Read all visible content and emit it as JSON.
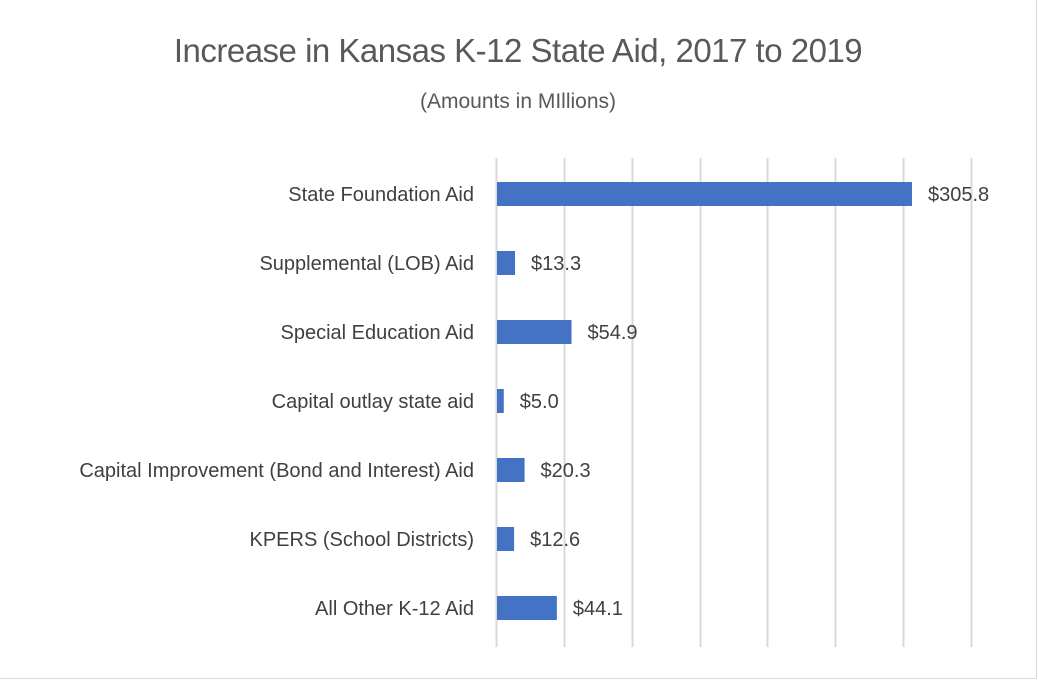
{
  "chart_data": {
    "type": "bar",
    "orientation": "horizontal",
    "title": "Increase in Kansas K-12 State Aid, 2017 to 2019",
    "subtitle": "(Amounts in MIllions)",
    "categories": [
      "State Foundation Aid",
      "Supplemental (LOB) Aid",
      "Special Education Aid",
      "Capital outlay state aid",
      "Capital Improvement (Bond and Interest) Aid",
      "KPERS (School Districts)",
      "All Other K-12 Aid"
    ],
    "values": [
      305.8,
      13.3,
      54.9,
      5.0,
      20.3,
      12.6,
      44.1
    ],
    "data_labels": [
      "$305.8",
      "$13.3",
      "$54.9",
      "$5.0",
      "$20.3",
      "$12.6",
      "$44.1"
    ],
    "xlim": [
      0,
      350
    ],
    "x_gridline_step": 50,
    "grid": true,
    "x_tick_labels_shown": false,
    "bar_color": "#4472c4",
    "gridline_color": "#d9d9d9"
  }
}
